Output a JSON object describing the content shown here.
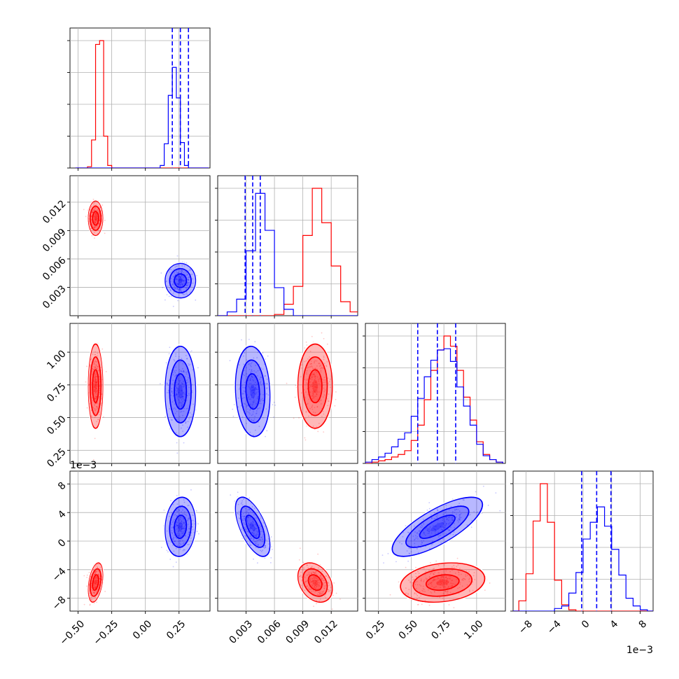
{
  "chart_data": {
    "type": "corner",
    "title": "",
    "colors": {
      "series_red": "#ff0000",
      "series_blue": "#0000ff"
    },
    "series": [
      {
        "name": "",
        "color": "#ff0000",
        "means": [
          -0.37,
          0.0103,
          0.74,
          -0.0058
        ],
        "stds": [
          0.025,
          0.0008,
          0.14,
          0.0012
        ]
      },
      {
        "name": "",
        "color": "#0000ff",
        "means": [
          0.26,
          0.0037,
          0.7,
          0.002
        ],
        "stds": [
          0.05,
          0.0008,
          0.15,
          0.0018
        ]
      }
    ],
    "quantile_lines": {
      "color": "#0000ff",
      "params": [
        [
          0.2,
          0.26,
          0.32
        ],
        [
          0.0029,
          0.0037,
          0.0045
        ],
        [
          0.55,
          0.7,
          0.84
        ],
        [
          -0.0002,
          0.0019,
          0.0039
        ]
      ]
    },
    "histograms": [
      {
        "bins": [
          -0.52,
          -0.49,
          -0.46,
          -0.43,
          -0.4,
          -0.37,
          -0.34,
          -0.31,
          -0.28,
          -0.25,
          -0.22,
          -0.19,
          -0.16,
          -0.13,
          -0.1,
          -0.07,
          -0.04,
          -0.01,
          0.02,
          0.05,
          0.08,
          0.11,
          0.14,
          0.17,
          0.2,
          0.23,
          0.26,
          0.29,
          0.32,
          0.35,
          0.38,
          0.41,
          0.44,
          0.47
        ],
        "red": [
          0,
          0,
          0,
          0.01,
          0.22,
          0.97,
          1.0,
          0.25,
          0.02,
          0,
          0,
          0,
          0,
          0,
          0,
          0,
          0,
          0,
          0,
          0,
          0,
          0,
          0,
          0,
          0,
          0,
          0,
          0,
          0,
          0,
          0,
          0,
          0
        ],
        "blue": [
          0,
          0,
          0,
          0,
          0,
          0,
          0,
          0,
          0,
          0,
          0,
          0,
          0,
          0,
          0,
          0,
          0,
          0,
          0,
          0,
          0,
          0.02,
          0.19,
          0.57,
          0.79,
          0.55,
          0.2,
          0.02,
          0,
          0,
          0,
          0,
          0
        ]
      },
      {
        "bins": [
          0.0,
          0.001,
          0.002,
          0.003,
          0.004,
          0.005,
          0.006,
          0.007,
          0.008,
          0.009,
          0.01,
          0.011,
          0.012,
          0.013,
          0.014,
          0.015
        ],
        "red": [
          0,
          0,
          0,
          0,
          0,
          0,
          0.01,
          0.09,
          0.23,
          0.63,
          1.0,
          0.73,
          0.39,
          0.11,
          0.03
        ],
        "blue": [
          0,
          0.03,
          0.13,
          0.51,
          0.96,
          0.67,
          0.22,
          0.05,
          0,
          0,
          0,
          0,
          0,
          0,
          0
        ]
      },
      {
        "bins": [
          0.15,
          0.2,
          0.25,
          0.3,
          0.35,
          0.4,
          0.45,
          0.5,
          0.55,
          0.6,
          0.65,
          0.7,
          0.75,
          0.8,
          0.85,
          0.9,
          0.95,
          1.0,
          1.05,
          1.1,
          1.15,
          1.2
        ],
        "red": [
          0,
          0.01,
          0.02,
          0.03,
          0.05,
          0.07,
          0.1,
          0.18,
          0.3,
          0.5,
          0.73,
          0.89,
          1.0,
          0.92,
          0.73,
          0.52,
          0.34,
          0.17,
          0.07,
          0.03,
          0.01
        ],
        "blue": [
          0.01,
          0.03,
          0.05,
          0.08,
          0.13,
          0.19,
          0.24,
          0.37,
          0.51,
          0.68,
          0.81,
          0.89,
          0.9,
          0.8,
          0.6,
          0.45,
          0.3,
          0.15,
          0.06,
          0.03,
          0.01
        ]
      },
      {
        "bins": [
          -0.01,
          -0.009,
          -0.008,
          -0.007,
          -0.006,
          -0.005,
          -0.004,
          -0.003,
          -0.002,
          -0.001,
          0.0,
          0.001,
          0.002,
          0.003,
          0.004,
          0.005,
          0.006,
          0.007,
          0.008,
          0.009,
          0.01
        ],
        "red": [
          0,
          0.08,
          0.29,
          0.7,
          0.99,
          0.69,
          0.24,
          0.05,
          0.01,
          0,
          0,
          0,
          0,
          0,
          0,
          0,
          0,
          0,
          0,
          0
        ],
        "blue": [
          0,
          0,
          0,
          0,
          0,
          0,
          0.02,
          0.04,
          0.14,
          0.3,
          0.56,
          0.69,
          0.81,
          0.66,
          0.48,
          0.28,
          0.1,
          0.04,
          0.01,
          0
        ]
      }
    ],
    "correlations": {
      "1,0": {
        "red": 0.0,
        "blue": 0.0
      },
      "2,0": {
        "red": 0.0,
        "blue": 0.0
      },
      "2,1": {
        "red": 0.0,
        "blue": -0.1
      },
      "3,0": {
        "red": 0.35,
        "blue": 0.1
      },
      "3,1": {
        "red": -0.3,
        "blue": -0.6
      },
      "3,2": {
        "red": 0.2,
        "blue": 0.75
      }
    },
    "axes": [
      {
        "range": [
          -0.56,
          0.48
        ],
        "ticks": [
          -0.5,
          -0.25,
          0.0,
          0.25
        ],
        "tick_labels": [
          "−0.50",
          "−0.25",
          "0.00",
          "0.25"
        ]
      },
      {
        "range": [
          0.0,
          0.0148
        ],
        "ticks": [
          0.003,
          0.006,
          0.009,
          0.012
        ],
        "tick_labels": [
          "0.003",
          "0.006",
          "0.009",
          "0.012"
        ]
      },
      {
        "range": [
          0.15,
          1.22
        ],
        "ticks": [
          0.25,
          0.5,
          0.75,
          1.0
        ],
        "tick_labels": [
          "0.25",
          "0.50",
          "0.75",
          "1.00"
        ]
      },
      {
        "range": [
          -0.0098,
          0.0098
        ],
        "ticks": [
          -0.008,
          -0.004,
          0.0,
          0.004,
          0.008
        ],
        "tick_labels": [
          "−8",
          "−4",
          "0",
          "4",
          "8"
        ],
        "offset_text": "1e−3"
      }
    ],
    "grid": true
  }
}
